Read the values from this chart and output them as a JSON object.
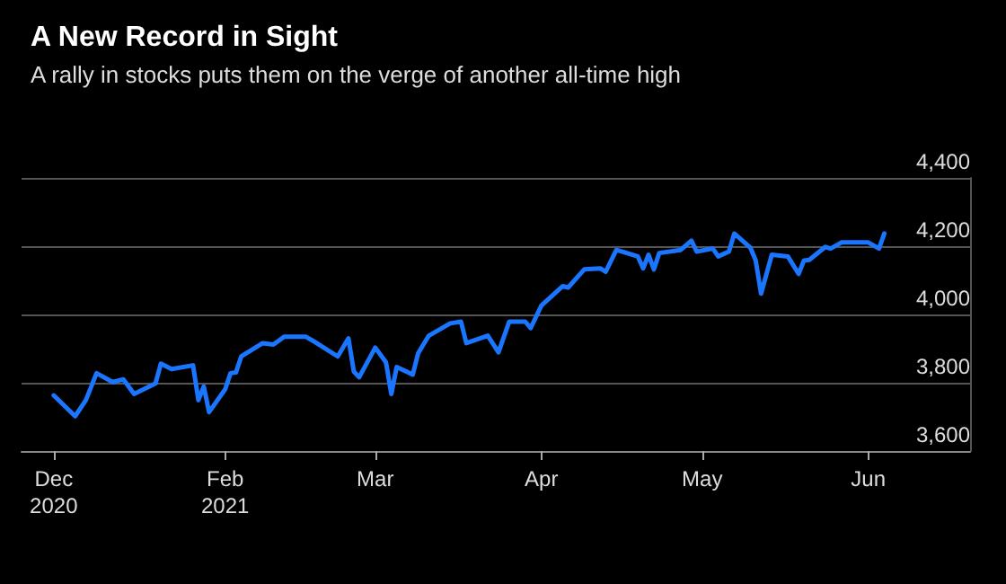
{
  "chart_data": {
    "type": "line",
    "title": "A New Record in Sight",
    "subtitle": "A rally in stocks puts them on the verge of another all-time high",
    "x": [
      "2020-12-31",
      "2021-01-04",
      "2021-01-06",
      "2021-01-08",
      "2021-01-11",
      "2021-01-13",
      "2021-01-15",
      "2021-01-19",
      "2021-01-20",
      "2021-01-22",
      "2021-01-26",
      "2021-01-27",
      "2021-01-28",
      "2021-01-29",
      "2021-02-01",
      "2021-02-02",
      "2021-02-03",
      "2021-02-04",
      "2021-02-08",
      "2021-02-10",
      "2021-02-12",
      "2021-02-16",
      "2021-02-18",
      "2021-02-22",
      "2021-02-24",
      "2021-02-25",
      "2021-02-26",
      "2021-03-01",
      "2021-03-03",
      "2021-03-04",
      "2021-03-05",
      "2021-03-08",
      "2021-03-09",
      "2021-03-11",
      "2021-03-15",
      "2021-03-17",
      "2021-03-18",
      "2021-03-22",
      "2021-03-24",
      "2021-03-26",
      "2021-03-29",
      "2021-03-30",
      "2021-04-01",
      "2021-04-05",
      "2021-04-06",
      "2021-04-09",
      "2021-04-12",
      "2021-04-13",
      "2021-04-15",
      "2021-04-19",
      "2021-04-20",
      "2021-04-21",
      "2021-04-22",
      "2021-04-23",
      "2021-04-27",
      "2021-04-29",
      "2021-04-30",
      "2021-05-03",
      "2021-05-04",
      "2021-05-06",
      "2021-05-07",
      "2021-05-10",
      "2021-05-11",
      "2021-05-12",
      "2021-05-14",
      "2021-05-17",
      "2021-05-19",
      "2021-05-20",
      "2021-05-21",
      "2021-05-24",
      "2021-05-25",
      "2021-05-27",
      "2021-06-01",
      "2021-06-03",
      "2021-06-04"
    ],
    "series": [
      {
        "color": "#1a75ff",
        "values": [
          3763,
          3702,
          3749,
          3828,
          3802,
          3810,
          3767,
          3798,
          3856,
          3840,
          3851,
          3749,
          3789,
          3714,
          3781,
          3828,
          3830,
          3877,
          3916,
          3912,
          3935,
          3935,
          3917,
          3877,
          3930,
          3833,
          3816,
          3903,
          3860,
          3767,
          3846,
          3824,
          3886,
          3938,
          3974,
          3979,
          3916,
          3938,
          3889,
          3979,
          3979,
          3960,
          4026,
          4083,
          4079,
          4132,
          4135,
          4125,
          4189,
          4170,
          4135,
          4175,
          4132,
          4180,
          4189,
          4216,
          4184,
          4193,
          4170,
          4184,
          4237,
          4196,
          4158,
          4061,
          4175,
          4170,
          4119,
          4158,
          4160,
          4198,
          4193,
          4211,
          4211,
          4193,
          4237
        ]
      }
    ],
    "xlim": [
      "2020-12-25",
      "2021-06-20"
    ],
    "xticks": [
      {
        "value": "2020-12-31",
        "label": "Dec\n2020"
      },
      {
        "value": "2021-02-01",
        "label": "Feb\n2021"
      },
      {
        "value": "2021-03-01",
        "label": "Mar"
      },
      {
        "value": "2021-04-01",
        "label": "Apr"
      },
      {
        "value": "2021-05-01",
        "label": "May"
      },
      {
        "value": "2021-06-01",
        "label": "Jun"
      }
    ],
    "ylim": [
      3600,
      4400
    ],
    "yticks": [
      {
        "value": 3600,
        "label": "3,600"
      },
      {
        "value": 3800,
        "label": "3,800"
      },
      {
        "value": 4000,
        "label": "4,000"
      },
      {
        "value": 4200,
        "label": "4,200"
      },
      {
        "value": 4400,
        "label": "4,400"
      }
    ],
    "grid": "y",
    "line_style": "solid",
    "marker": "none"
  }
}
